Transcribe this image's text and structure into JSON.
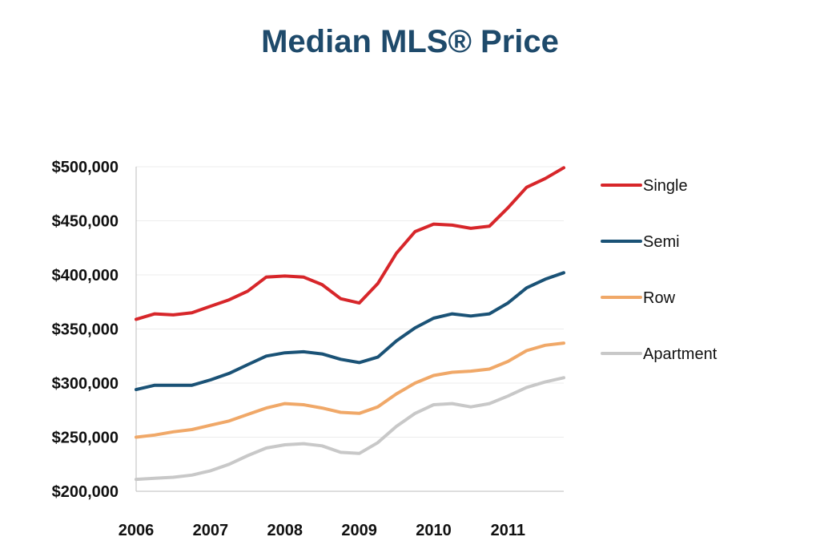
{
  "chart_data": {
    "type": "line",
    "title": "Median MLS® Price",
    "xlabel": "",
    "ylabel": "",
    "x_tick_labels": [
      "2006",
      "2007",
      "2008",
      "2009",
      "2010",
      "2011"
    ],
    "x_range": [
      2006.0,
      2011.75
    ],
    "y_tick_labels": [
      "$200,000",
      "$250,000",
      "$300,000",
      "$350,000",
      "$400,000",
      "$450,000",
      "$500,000"
    ],
    "y_ticks": [
      200000,
      250000,
      300000,
      350000,
      400000,
      450000,
      500000
    ],
    "ylim": [
      200000,
      500000
    ],
    "grid": "horizontal",
    "legend_position": "right",
    "x": [
      2006.0,
      2006.25,
      2006.5,
      2006.75,
      2007.0,
      2007.25,
      2007.5,
      2007.75,
      2008.0,
      2008.25,
      2008.5,
      2008.75,
      2009.0,
      2009.25,
      2009.5,
      2009.75,
      2010.0,
      2010.25,
      2010.5,
      2010.75,
      2011.0,
      2011.25,
      2011.5,
      2011.75
    ],
    "series": [
      {
        "name": "Single",
        "color": "#d7262a",
        "values": [
          359000,
          364000,
          363000,
          365000,
          371000,
          377000,
          385000,
          398000,
          399000,
          398000,
          391000,
          378000,
          374000,
          392000,
          420000,
          440000,
          447000,
          446000,
          443000,
          445000,
          462000,
          481000,
          489000,
          499000
        ]
      },
      {
        "name": "Semi",
        "color": "#1a5276",
        "values": [
          294000,
          298000,
          298000,
          298000,
          303000,
          309000,
          317000,
          325000,
          328000,
          329000,
          327000,
          322000,
          319000,
          324000,
          339000,
          351000,
          360000,
          364000,
          362000,
          364000,
          374000,
          388000,
          396000,
          402000
        ]
      },
      {
        "name": "Row",
        "color": "#f0a868",
        "values": [
          250000,
          252000,
          255000,
          257000,
          261000,
          265000,
          271000,
          277000,
          281000,
          280000,
          277000,
          273000,
          272000,
          278000,
          290000,
          300000,
          307000,
          310000,
          311000,
          313000,
          320000,
          330000,
          335000,
          337000
        ]
      },
      {
        "name": "Apartment",
        "color": "#c8c8c8",
        "values": [
          211000,
          212000,
          213000,
          215000,
          219000,
          225000,
          233000,
          240000,
          243000,
          244000,
          242000,
          236000,
          235000,
          245000,
          260000,
          272000,
          280000,
          281000,
          278000,
          281000,
          288000,
          296000,
          301000,
          305000
        ]
      }
    ]
  }
}
